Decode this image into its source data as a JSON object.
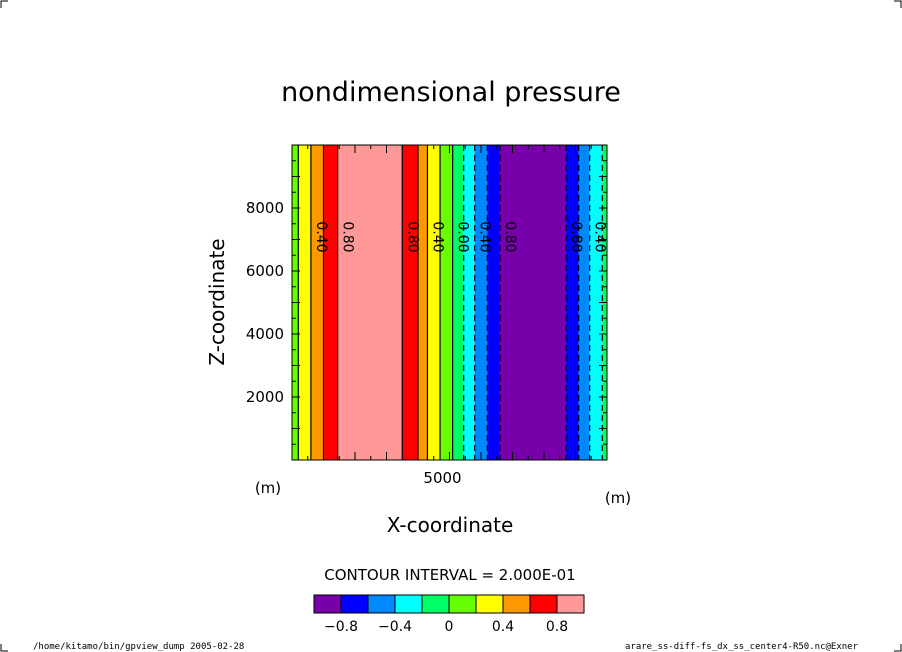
{
  "chart_data": {
    "type": "heatmap",
    "title": "nondimensional pressure",
    "xlabel": "X-coordinate",
    "ylabel": "Z-coordinate",
    "x_unit": "(m)",
    "y_unit": "(m)",
    "xlim": [
      0,
      10000
    ],
    "ylim": [
      0,
      10000
    ],
    "xticks": [
      {
        "value": 5000,
        "label": "5000"
      }
    ],
    "yticks": [
      {
        "value": 2000,
        "label": "2000"
      },
      {
        "value": 4000,
        "label": "4000"
      },
      {
        "value": 6000,
        "label": "6000"
      },
      {
        "value": 8000,
        "label": "8000"
      }
    ],
    "grid": false,
    "field_variation": "x-only",
    "bands": [
      {
        "x0": 0,
        "x1": 200,
        "color": "#66ff00"
      },
      {
        "x0": 200,
        "x1": 600,
        "color": "#ffff00"
      },
      {
        "x0": 600,
        "x1": 1000,
        "color": "#ff9900"
      },
      {
        "x0": 1000,
        "x1": 1450,
        "color": "#ff0000"
      },
      {
        "x0": 1450,
        "x1": 3500,
        "color": "#ff9999"
      },
      {
        "x0": 3500,
        "x1": 4000,
        "color": "#ff0000"
      },
      {
        "x0": 4000,
        "x1": 4300,
        "color": "#ff9900"
      },
      {
        "x0": 4300,
        "x1": 4700,
        "color": "#ffff00"
      },
      {
        "x0": 4700,
        "x1": 5100,
        "color": "#66ff00"
      },
      {
        "x0": 5100,
        "x1": 5450,
        "color": "#00ff66"
      },
      {
        "x0": 5450,
        "x1": 5800,
        "color": "#00ffff"
      },
      {
        "x0": 5800,
        "x1": 6200,
        "color": "#0088ff"
      },
      {
        "x0": 6200,
        "x1": 6600,
        "color": "#0000ff"
      },
      {
        "x0": 6600,
        "x1": 8700,
        "color": "#7700aa"
      },
      {
        "x0": 8700,
        "x1": 9100,
        "color": "#0000ff"
      },
      {
        "x0": 9100,
        "x1": 9450,
        "color": "#0088ff"
      },
      {
        "x0": 9450,
        "x1": 9850,
        "color": "#00ffff"
      },
      {
        "x0": 9850,
        "x1": 10000,
        "color": "#00ff66"
      }
    ],
    "contours": [
      {
        "x": 200,
        "dashed": false,
        "label": ""
      },
      {
        "x": 600,
        "dashed": false,
        "label": "0.40"
      },
      {
        "x": 1000,
        "dashed": false,
        "label": ""
      },
      {
        "x": 1450,
        "dashed": false,
        "label": "0.80"
      },
      {
        "x": 3500,
        "dashed": false,
        "label": "0.80"
      },
      {
        "x": 4000,
        "dashed": false,
        "label": ""
      },
      {
        "x": 4300,
        "dashed": false,
        "label": "0.40"
      },
      {
        "x": 4700,
        "dashed": false,
        "label": ""
      },
      {
        "x": 5100,
        "dashed": false,
        "label": "0.00"
      },
      {
        "x": 5450,
        "dashed": true,
        "label": ""
      },
      {
        "x": 5800,
        "dashed": true,
        "label": "0.40"
      },
      {
        "x": 6200,
        "dashed": true,
        "label": ""
      },
      {
        "x": 6600,
        "dashed": true,
        "label": "0.80"
      },
      {
        "x": 8700,
        "dashed": true,
        "label": "0.80"
      },
      {
        "x": 9100,
        "dashed": true,
        "label": ""
      },
      {
        "x": 9450,
        "dashed": true,
        "label": "0.40"
      },
      {
        "x": 9850,
        "dashed": true,
        "label": ""
      }
    ],
    "contour_interval_text": "CONTOUR INTERVAL = 2.000E-01",
    "colorbar": {
      "colors": [
        "#7700aa",
        "#0000ff",
        "#0088ff",
        "#00ffff",
        "#00ff66",
        "#66ff00",
        "#ffff00",
        "#ff9900",
        "#ff0000",
        "#ff9999"
      ],
      "range": [
        -1.0,
        1.0
      ],
      "ticks": [
        {
          "value": -0.8,
          "label": "−0.8"
        },
        {
          "value": -0.4,
          "label": "−0.4"
        },
        {
          "value": 0.0,
          "label": "0"
        },
        {
          "value": 0.4,
          "label": "0.4"
        },
        {
          "value": 0.8,
          "label": "0.8"
        }
      ]
    }
  },
  "footer": {
    "left": "/home/kitamo/bin/gpview_dump  2005-02-28",
    "right": "arare_ss-diff-fs_dx_ss_center4-R50.nc@Exner"
  }
}
